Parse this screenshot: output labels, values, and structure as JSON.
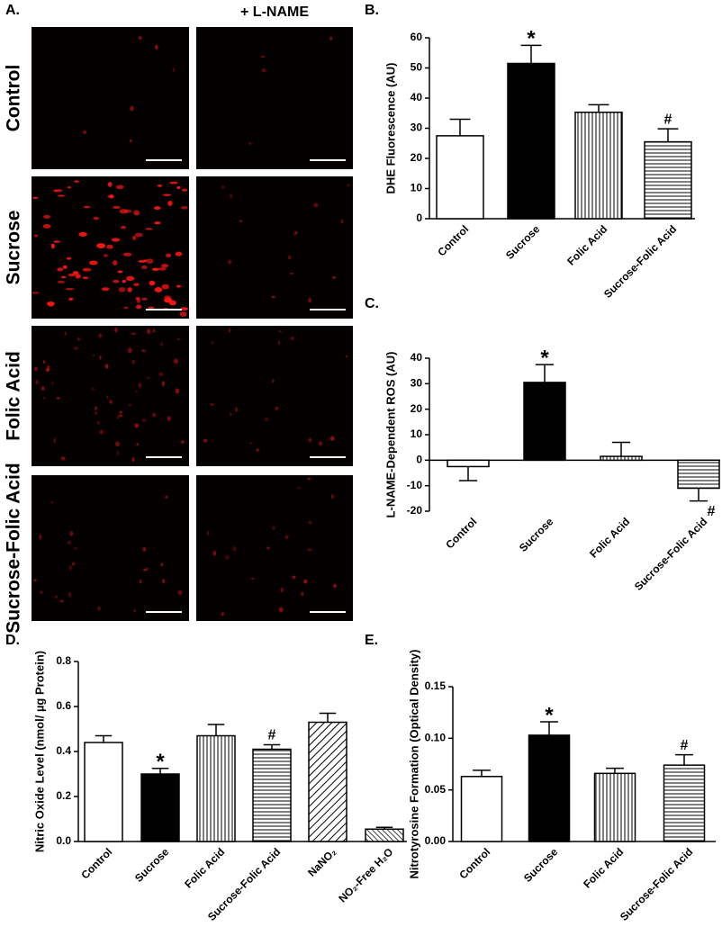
{
  "image_panel": {
    "label": "A.",
    "column_title": "+ L-NAME",
    "row_labels": [
      "Control",
      "Sucrose",
      "Folic Acid",
      "Sucrose-Folic Acid"
    ]
  },
  "chart_data": [
    {
      "type": "bar",
      "panel_label": "B.",
      "ylabel": "DHE Fluorescence (AU)",
      "categories": [
        "Control",
        "Sucrose",
        "Folic Acid",
        "Sucrose-Folic Acid"
      ],
      "values": [
        27.5,
        51.5,
        35.3,
        25.5
      ],
      "errors": [
        5.5,
        6,
        2.5,
        4.3
      ],
      "markers": [
        null,
        "*",
        null,
        "#"
      ],
      "fills": [
        "white",
        "black",
        "vertical-lines",
        "horizontal-lines"
      ],
      "ylim": [
        0,
        60
      ],
      "yticks": [
        0,
        10,
        20,
        30,
        40,
        50,
        60
      ]
    },
    {
      "type": "bar",
      "panel_label": "C.",
      "ylabel": "L-NAME-Dependent ROS (AU)",
      "categories": [
        "Control",
        "Sucrose",
        "Folic Acid",
        "Sucrose-Folic Acid"
      ],
      "values": [
        -2.5,
        30.5,
        1.5,
        -11
      ],
      "errors": [
        5.5,
        7,
        5.5,
        5
      ],
      "markers": [
        null,
        "*",
        null,
        "#"
      ],
      "fills": [
        "white",
        "black",
        "vertical-lines",
        "horizontal-lines"
      ],
      "ylim": [
        -20,
        40
      ],
      "yticks": [
        -20,
        -10,
        0,
        10,
        20,
        30,
        40
      ]
    },
    {
      "type": "bar",
      "panel_label": "D.",
      "ylabel": "Nitric Oxide Level (nmol/ µg Protein)",
      "categories": [
        "Control",
        "Sucrose",
        "Folic Acid",
        "Sucrose-Folic Acid",
        "NaNO₂",
        "NO₂-Free H₂O"
      ],
      "values": [
        0.44,
        0.3,
        0.47,
        0.41,
        0.53,
        0.055
      ],
      "errors": [
        0.03,
        0.025,
        0.05,
        0.02,
        0.04,
        0.008
      ],
      "markers": [
        null,
        "*",
        null,
        "#",
        null,
        null
      ],
      "fills": [
        "white",
        "black",
        "vertical-lines",
        "horizontal-lines",
        "diagonal-lines",
        "diagonal-dense"
      ],
      "ylim": [
        0,
        0.8
      ],
      "yticks": [
        {
          "value": 0,
          "label": "0.0"
        },
        0.2,
        0.4,
        0.6,
        0.8
      ]
    },
    {
      "type": "bar",
      "panel_label": "E.",
      "ylabel": "Nitrotyrosine Formation (Optical Density)",
      "categories": [
        "Control",
        "Sucrose",
        "Folic Acid",
        "Sucrose-Folic Acid"
      ],
      "values": [
        0.063,
        0.103,
        0.066,
        0.074
      ],
      "errors": [
        0.006,
        0.013,
        0.005,
        0.01
      ],
      "markers": [
        null,
        "*",
        null,
        "#"
      ],
      "fills": [
        "white",
        "black",
        "vertical-lines",
        "horizontal-lines"
      ],
      "ylim": [
        0,
        0.15
      ],
      "yticks": [
        {
          "value": 0,
          "label": "0.00"
        },
        {
          "value": 0.05,
          "label": "0.05"
        },
        {
          "value": 0.1,
          "label": "0.10"
        },
        {
          "value": 0.15,
          "label": "0.15"
        }
      ]
    }
  ]
}
